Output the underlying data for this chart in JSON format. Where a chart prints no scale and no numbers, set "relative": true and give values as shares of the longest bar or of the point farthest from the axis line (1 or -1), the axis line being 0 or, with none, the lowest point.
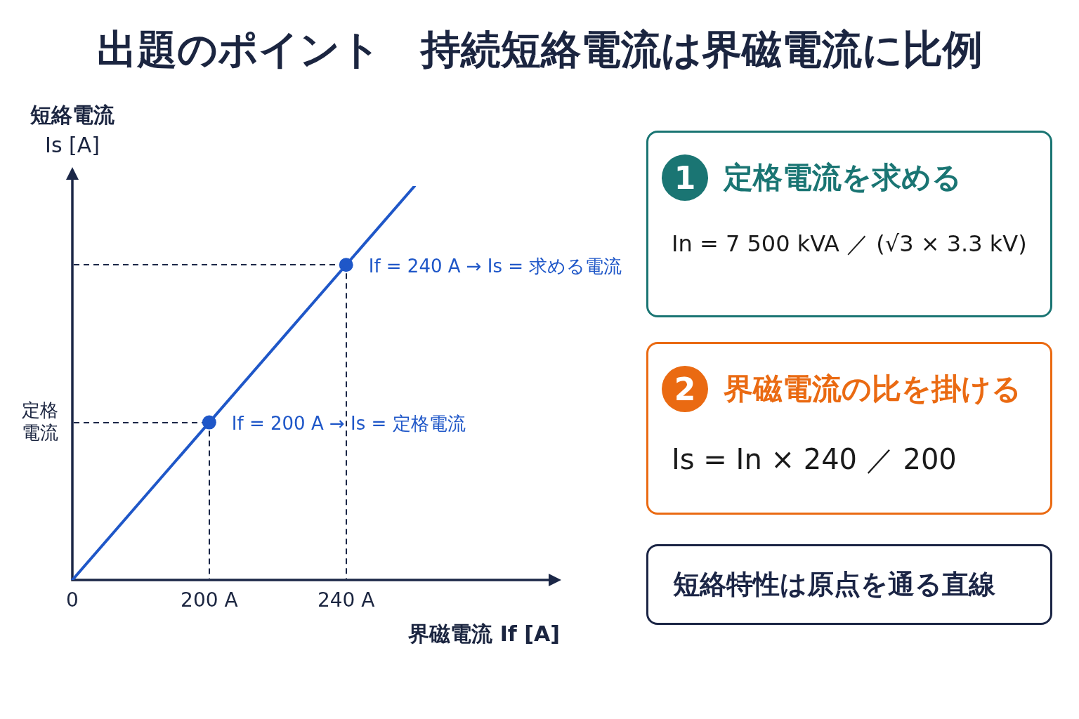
{
  "chart_data": [
    {
      "type": "line",
      "title": "出題のポイント　持続短絡電流は界磁電流に比例",
      "xlabel": "界磁電流 If [A]",
      "ylabel": "短絡電流\nIs [A]",
      "categories": [
        "0",
        null,
        "200 A",
        null,
        "240 A",
        null,
        null,
        null
      ],
      "relative": true,
      "series": [
        {
          "type": "line",
          "color": "#1f57c8",
          "marker": "none",
          "values": [
            0,
            0.2,
            0.4,
            0.6,
            0.8,
            1,
            null,
            null
          ]
        },
        {
          "type": "scatter",
          "color": "#1f57c8",
          "marker": "circle",
          "x": [
            "200 A",
            "240 A"
          ],
          "values": [
            0.4,
            0.8
          ]
        }
      ],
      "ref_lines": [
        {
          "axis": "y",
          "value": 0.4,
          "label": "定格電流",
          "color": "#1b2747",
          "line_style": "dashed"
        },
        {
          "axis": "y",
          "value": 0.8,
          "color": "#1b2747",
          "line_style": "dashed"
        },
        {
          "axis": "x",
          "value": "200 A",
          "color": "#1b2747",
          "line_style": "dashed"
        },
        {
          "axis": "x",
          "value": "240 A",
          "color": "#1b2747",
          "line_style": "dashed"
        }
      ],
      "annotations": [
        {
          "text": "If = 240 A → Is = 求める電流",
          "x": "240 A",
          "y": 0.8
        },
        {
          "text": "If = 200 A → Is = 定格電流",
          "x": "200 A",
          "y": 0.4
        }
      ]
    },
    {
      "type": "other",
      "title": "定格電流を求める",
      "subtitle": "In = 7 500 kVA ／ (√3 × 3.3 kV)",
      "annotations": [
        "1"
      ],
      "color": "#1a7573"
    },
    {
      "type": "other",
      "title": "界磁電流の比を掛ける",
      "subtitle": "Is = In × 240 ／ 200",
      "annotations": [
        "2"
      ],
      "color": "#ea6a12"
    },
    {
      "type": "other",
      "title": "短絡特性は原点を通る直線",
      "color": "#1b2545"
    }
  ]
}
